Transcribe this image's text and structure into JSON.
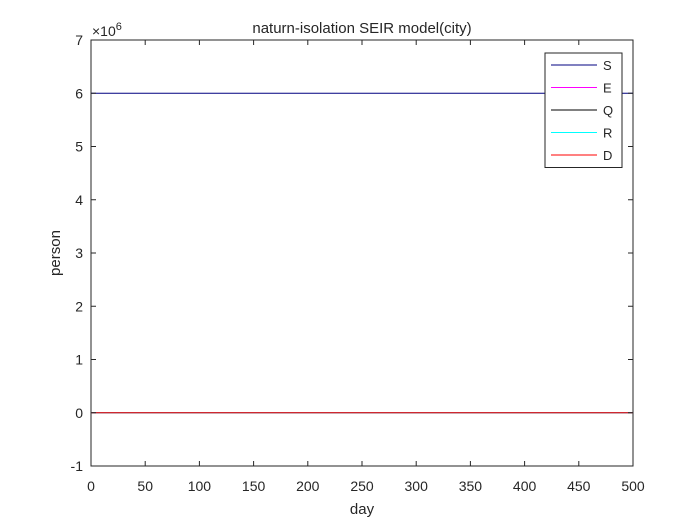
{
  "chart_data": {
    "type": "line",
    "title": "naturn-isolation SEIR model(city)",
    "xlabel": "day",
    "ylabel": "person",
    "xlim": [
      0,
      500
    ],
    "ylim": [
      -1,
      7
    ],
    "xticks": [
      0,
      50,
      100,
      150,
      200,
      250,
      300,
      350,
      400,
      450,
      500
    ],
    "yticks": [
      -1,
      0,
      1,
      2,
      3,
      4,
      5,
      6,
      7
    ],
    "y_exponent_label": "×10",
    "y_exponent_power": "6",
    "grid": false,
    "legend_position": "top-right",
    "series": [
      {
        "name": "S",
        "color": "#000080",
        "x": [
          0,
          500
        ],
        "y": [
          6,
          6
        ]
      },
      {
        "name": "E",
        "color": "#ff00ff",
        "x": [
          0,
          500
        ],
        "y": [
          0,
          0
        ]
      },
      {
        "name": "Q",
        "color": "#000000",
        "x": [
          0,
          500
        ],
        "y": [
          0,
          0
        ]
      },
      {
        "name": "R",
        "color": "#00ffff",
        "x": [
          0,
          500
        ],
        "y": [
          0,
          0
        ]
      },
      {
        "name": "D",
        "color": "#ff0000",
        "x": [
          0,
          500
        ],
        "y": [
          0,
          0
        ]
      }
    ]
  }
}
